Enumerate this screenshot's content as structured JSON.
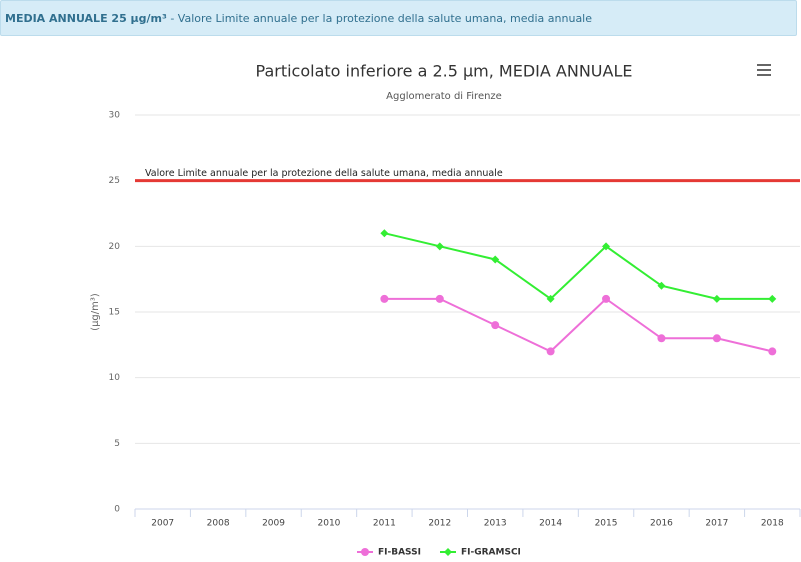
{
  "header": {
    "title": "MEDIA ANNUALE 25 µg/m³",
    "text": " - Valore Limite annuale per la protezione della salute umana, media annuale"
  },
  "chart_data": {
    "type": "line",
    "title": "Particolato inferiore a 2.5 µm, MEDIA ANNUALE",
    "subtitle": "Agglomerato di Firenze",
    "y_label": "(µg/m³)",
    "categories": [
      "2007",
      "2008",
      "2009",
      "2010",
      "2011",
      "2012",
      "2013",
      "2014",
      "2015",
      "2016",
      "2017",
      "2018"
    ],
    "series": [
      {
        "name": "FI-BASSI",
        "color": "#ee6fd8",
        "values": [
          null,
          null,
          null,
          null,
          16,
          16,
          14,
          12,
          16,
          13,
          13,
          12
        ]
      },
      {
        "name": "FI-GRAMSCI",
        "color": "#33ee33",
        "values": [
          null,
          null,
          null,
          null,
          21,
          20,
          19,
          16,
          20,
          17,
          16,
          16
        ]
      }
    ],
    "ylim": [
      0,
      30
    ],
    "yticks": [
      0,
      5,
      10,
      15,
      20,
      25,
      30
    ],
    "grid": true,
    "plot_line": {
      "value": 25,
      "label": "Valore Limite annuale per la protezione della salute umana, media annuale",
      "color": "#e53935"
    },
    "legend": "bottom"
  }
}
